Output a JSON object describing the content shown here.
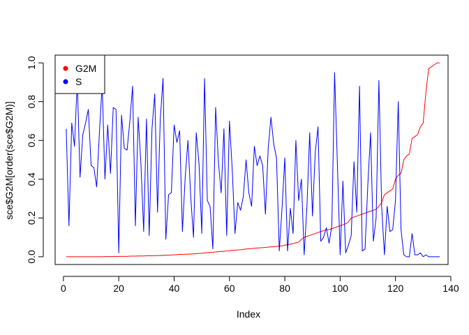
{
  "chart_data": {
    "type": "line",
    "title": "",
    "xlabel": "Index",
    "ylabel": "sce$G2M[order(sce$G2M)]",
    "xlim": [
      -3,
      139
    ],
    "ylim": [
      -0.04,
      1.04
    ],
    "xticks": [
      0,
      20,
      40,
      60,
      80,
      100,
      120,
      140
    ],
    "xtick_labels": [
      "0",
      "20",
      "40",
      "60",
      "80",
      "100",
      "120",
      "140"
    ],
    "yticks": [
      0.0,
      0.2,
      0.4,
      0.6,
      0.8,
      1.0
    ],
    "ytick_labels": [
      "0.0",
      "0.2",
      "0.4",
      "0.6",
      "0.8",
      "1.0"
    ],
    "grid": false,
    "legend_position": "top-left",
    "x": [
      1,
      2,
      3,
      4,
      5,
      6,
      7,
      8,
      9,
      10,
      11,
      12,
      13,
      14,
      15,
      16,
      17,
      18,
      19,
      20,
      21,
      22,
      23,
      24,
      25,
      26,
      27,
      28,
      29,
      30,
      31,
      32,
      33,
      34,
      35,
      36,
      37,
      38,
      39,
      40,
      41,
      42,
      43,
      44,
      45,
      46,
      47,
      48,
      49,
      50,
      51,
      52,
      53,
      54,
      55,
      56,
      57,
      58,
      59,
      60,
      61,
      62,
      63,
      64,
      65,
      66,
      67,
      68,
      69,
      70,
      71,
      72,
      73,
      74,
      75,
      76,
      77,
      78,
      79,
      80,
      81,
      82,
      83,
      84,
      85,
      86,
      87,
      88,
      89,
      90,
      91,
      92,
      93,
      94,
      95,
      96,
      97,
      98,
      99,
      100,
      101,
      102,
      103,
      104,
      105,
      106,
      107,
      108,
      109,
      110,
      111,
      112,
      113,
      114,
      115,
      116,
      117,
      118,
      119,
      120,
      121,
      122,
      123,
      124,
      125,
      126,
      127,
      128,
      129,
      130,
      131,
      132,
      133,
      134,
      135,
      136
    ],
    "series": [
      {
        "name": "G2M",
        "color": "#ff0000",
        "values": [
          0.0,
          0.0,
          0.0,
          0.0,
          0.0,
          0.0,
          0.0,
          0.0,
          0.0,
          0.0,
          0.0,
          0.0,
          0.0,
          0.0,
          0.001,
          0.001,
          0.001,
          0.001,
          0.001,
          0.002,
          0.002,
          0.002,
          0.002,
          0.003,
          0.003,
          0.003,
          0.004,
          0.004,
          0.004,
          0.005,
          0.005,
          0.005,
          0.006,
          0.006,
          0.007,
          0.007,
          0.008,
          0.008,
          0.009,
          0.01,
          0.011,
          0.012,
          0.012,
          0.013,
          0.013,
          0.014,
          0.015,
          0.016,
          0.017,
          0.018,
          0.02,
          0.021,
          0.022,
          0.023,
          0.025,
          0.026,
          0.027,
          0.028,
          0.03,
          0.031,
          0.033,
          0.034,
          0.035,
          0.036,
          0.038,
          0.04,
          0.041,
          0.042,
          0.044,
          0.045,
          0.046,
          0.047,
          0.048,
          0.05,
          0.051,
          0.052,
          0.053,
          0.055,
          0.056,
          0.06,
          0.062,
          0.065,
          0.068,
          0.072,
          0.075,
          0.09,
          0.1,
          0.105,
          0.11,
          0.115,
          0.12,
          0.125,
          0.13,
          0.135,
          0.138,
          0.14,
          0.145,
          0.15,
          0.155,
          0.16,
          0.165,
          0.17,
          0.18,
          0.2,
          0.205,
          0.21,
          0.215,
          0.22,
          0.225,
          0.23,
          0.235,
          0.24,
          0.245,
          0.26,
          0.28,
          0.32,
          0.33,
          0.34,
          0.35,
          0.4,
          0.42,
          0.43,
          0.5,
          0.52,
          0.53,
          0.61,
          0.62,
          0.63,
          0.67,
          0.69,
          0.85,
          0.97,
          0.98,
          0.99,
          1.0,
          1.0
        ]
      },
      {
        "name": "S",
        "color": "#0000ff",
        "values": [
          0.66,
          0.16,
          0.69,
          0.57,
          0.91,
          0.41,
          0.63,
          0.69,
          0.76,
          0.47,
          0.46,
          0.36,
          0.64,
          0.89,
          0.4,
          0.68,
          0.43,
          0.77,
          0.76,
          0.02,
          0.73,
          0.56,
          0.55,
          0.7,
          0.88,
          0.16,
          0.72,
          0.48,
          0.13,
          0.71,
          0.11,
          0.66,
          0.84,
          0.23,
          0.71,
          0.92,
          0.09,
          0.32,
          0.33,
          0.68,
          0.59,
          0.65,
          0.13,
          0.41,
          0.6,
          0.31,
          0.1,
          0.64,
          0.48,
          0.12,
          0.92,
          0.29,
          0.26,
          0.04,
          0.77,
          0.49,
          0.33,
          0.66,
          0.11,
          0.7,
          0.45,
          0.12,
          0.28,
          0.24,
          0.31,
          0.5,
          0.33,
          0.26,
          0.57,
          0.47,
          0.52,
          0.47,
          0.22,
          0.56,
          0.72,
          0.58,
          0.51,
          0.03,
          0.25,
          0.51,
          0.03,
          0.25,
          0.12,
          0.6,
          0.29,
          0.4,
          0.01,
          0.26,
          0.64,
          0.21,
          0.54,
          0.67,
          0.08,
          0.1,
          0.15,
          0.07,
          0.16,
          0.95,
          0.48,
          0.01,
          0.39,
          0.02,
          0.06,
          0.11,
          0.49,
          0.23,
          0.88,
          0.03,
          0.04,
          0.37,
          0.64,
          0.08,
          0.2,
          0.91,
          0.26,
          0.01,
          0.26,
          0.13,
          0.14,
          0.29,
          0.8,
          0.14,
          0.01,
          0.0,
          0.0,
          0.12,
          0.01,
          0.01,
          0.02,
          0.0,
          0.01,
          0.0,
          0.0,
          0.0,
          0.0,
          0.0
        ]
      }
    ]
  }
}
